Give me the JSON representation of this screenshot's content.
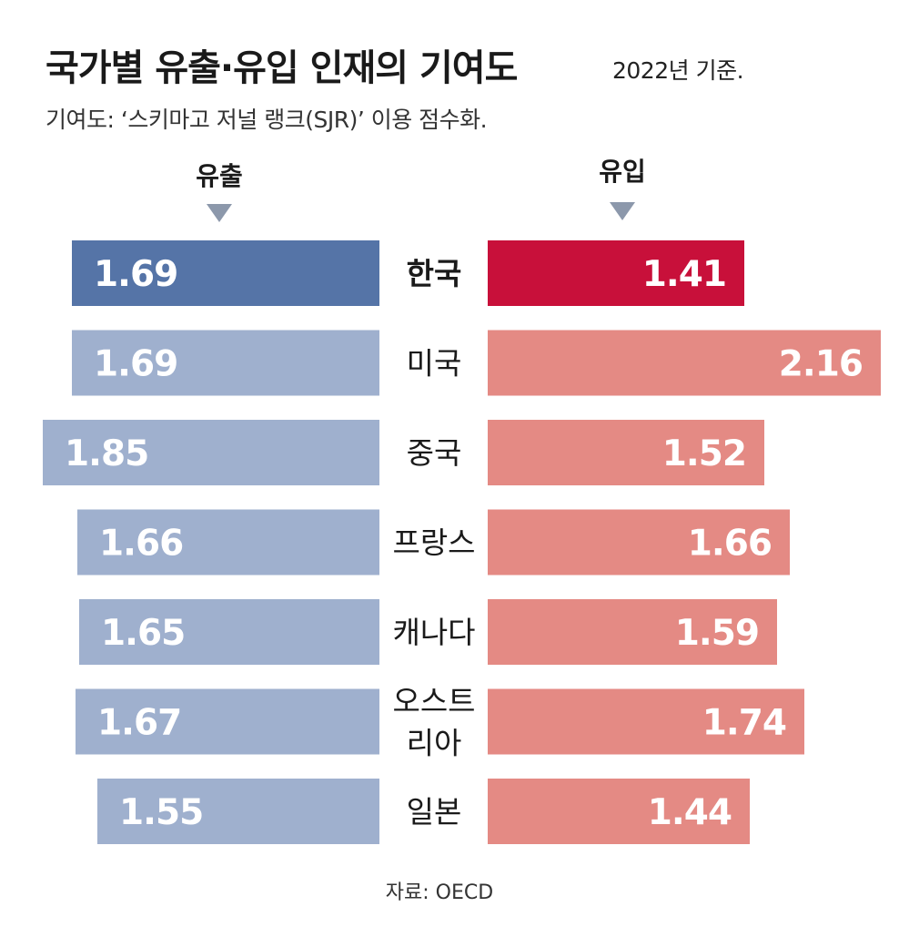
{
  "title": "국가별 유출·유입 인재의 기여도",
  "subtitle": "2022년 기준.",
  "note": "기여도: ‘스키마고 저널 랭크(SJR)’ 이용 점수화.",
  "source": "자료: OECD",
  "colors": {
    "outflow_highlight": "#5574a7",
    "outflow": "#9fb0ce",
    "inflow_highlight": "#c8103a",
    "inflow": "#e48a84"
  },
  "chart_data": {
    "type": "bar",
    "categories": [
      [
        "한국"
      ],
      [
        "미국"
      ],
      [
        "중국"
      ],
      [
        "프랑스"
      ],
      [
        "캐나다"
      ],
      [
        "오스트",
        "리아"
      ],
      [
        "일본"
      ]
    ],
    "series": [
      {
        "name": "유출",
        "values": [
          1.69,
          1.69,
          1.85,
          1.66,
          1.65,
          1.67,
          1.55
        ],
        "labels": [
          "1.69",
          "1.69",
          "1.85",
          "1.66",
          "1.65",
          "1.67",
          "1.55"
        ]
      },
      {
        "name": "유입",
        "values": [
          1.41,
          2.16,
          1.52,
          1.66,
          1.59,
          1.74,
          1.44
        ],
        "labels": [
          "1.41",
          "2.16",
          "1.52",
          "1.66",
          "1.59",
          "1.74",
          "1.44"
        ]
      }
    ],
    "highlight_index": 0
  }
}
